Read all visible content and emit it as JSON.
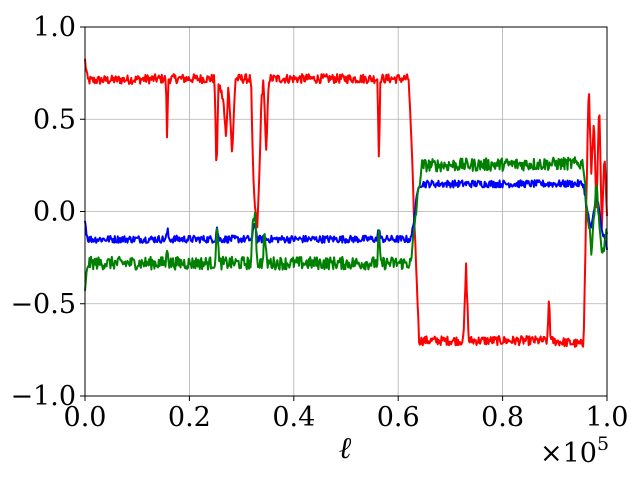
{
  "chart_data": {
    "type": "line",
    "title": "",
    "xlabel": "ℓ",
    "ylabel": "",
    "x_offset_label": "×10",
    "x_offset_exponent": "5",
    "xlim": [
      0.0,
      1.0
    ],
    "ylim": [
      -1.0,
      1.0
    ],
    "x_ticks": [
      "0.0",
      "0.2",
      "0.4",
      "0.6",
      "0.8",
      "1.0"
    ],
    "y_ticks": [
      "−1.0",
      "−0.5",
      "0.0",
      "0.5",
      "1.0"
    ],
    "grid": true,
    "legend": "none",
    "series": [
      {
        "color": "#ff0000",
        "noise": 0.025,
        "points": [
          [
            0.0,
            0.82
          ],
          [
            0.005,
            0.71
          ],
          [
            0.155,
            0.72
          ],
          [
            0.157,
            0.4
          ],
          [
            0.16,
            0.72
          ],
          [
            0.248,
            0.72
          ],
          [
            0.252,
            0.22
          ],
          [
            0.256,
            0.7
          ],
          [
            0.265,
            0.6
          ],
          [
            0.27,
            0.4
          ],
          [
            0.275,
            0.7
          ],
          [
            0.282,
            0.3
          ],
          [
            0.288,
            0.72
          ],
          [
            0.318,
            0.72
          ],
          [
            0.322,
            0.2
          ],
          [
            0.326,
            0.0
          ],
          [
            0.33,
            -0.1
          ],
          [
            0.334,
            0.2
          ],
          [
            0.338,
            0.6
          ],
          [
            0.342,
            0.72
          ],
          [
            0.347,
            0.3
          ],
          [
            0.352,
            0.72
          ],
          [
            0.56,
            0.72
          ],
          [
            0.563,
            0.3
          ],
          [
            0.566,
            0.72
          ],
          [
            0.62,
            0.72
          ],
          [
            0.625,
            0.4
          ],
          [
            0.63,
            0.0
          ],
          [
            0.636,
            -0.4
          ],
          [
            0.64,
            -0.7
          ],
          [
            0.725,
            -0.7
          ],
          [
            0.73,
            -0.3
          ],
          [
            0.735,
            -0.7
          ],
          [
            0.886,
            -0.7
          ],
          [
            0.889,
            -0.45
          ],
          [
            0.892,
            -0.7
          ],
          [
            0.955,
            -0.72
          ],
          [
            0.96,
            0.0
          ],
          [
            0.965,
            0.7
          ],
          [
            0.97,
            0.2
          ],
          [
            0.975,
            0.5
          ],
          [
            0.98,
            0.0
          ],
          [
            0.985,
            0.6
          ],
          [
            0.99,
            -0.1
          ],
          [
            0.995,
            0.3
          ],
          [
            1.0,
            0.0
          ]
        ]
      },
      {
        "color": "#0000ff",
        "noise": 0.02,
        "points": [
          [
            0.0,
            -0.05
          ],
          [
            0.005,
            -0.15
          ],
          [
            0.155,
            -0.15
          ],
          [
            0.158,
            -0.1
          ],
          [
            0.161,
            -0.15
          ],
          [
            0.25,
            -0.15
          ],
          [
            0.253,
            -0.08
          ],
          [
            0.256,
            -0.15
          ],
          [
            0.32,
            -0.15
          ],
          [
            0.325,
            -0.05
          ],
          [
            0.33,
            -0.15
          ],
          [
            0.56,
            -0.15
          ],
          [
            0.563,
            -0.08
          ],
          [
            0.566,
            -0.15
          ],
          [
            0.625,
            -0.15
          ],
          [
            0.632,
            0.0
          ],
          [
            0.64,
            0.15
          ],
          [
            0.955,
            0.15
          ],
          [
            0.962,
            0.0
          ],
          [
            0.97,
            -0.1
          ],
          [
            0.98,
            0.1
          ],
          [
            0.99,
            -0.1
          ],
          [
            1.0,
            -0.2
          ]
        ]
      },
      {
        "color": "#008000",
        "noise": 0.035,
        "points": [
          [
            0.0,
            -0.45
          ],
          [
            0.005,
            -0.28
          ],
          [
            0.155,
            -0.28
          ],
          [
            0.158,
            -0.18
          ],
          [
            0.161,
            -0.28
          ],
          [
            0.25,
            -0.28
          ],
          [
            0.253,
            -0.05
          ],
          [
            0.257,
            -0.28
          ],
          [
            0.318,
            -0.28
          ],
          [
            0.322,
            -0.05
          ],
          [
            0.326,
            0.0
          ],
          [
            0.33,
            -0.28
          ],
          [
            0.34,
            -0.28
          ],
          [
            0.344,
            -0.1
          ],
          [
            0.348,
            -0.28
          ],
          [
            0.56,
            -0.28
          ],
          [
            0.563,
            -0.1
          ],
          [
            0.566,
            -0.28
          ],
          [
            0.625,
            -0.28
          ],
          [
            0.632,
            -0.05
          ],
          [
            0.645,
            0.25
          ],
          [
            0.955,
            0.26
          ],
          [
            0.962,
            0.0
          ],
          [
            0.97,
            -0.2
          ],
          [
            0.98,
            0.15
          ],
          [
            0.99,
            -0.25
          ],
          [
            1.0,
            -0.1
          ]
        ]
      }
    ]
  }
}
